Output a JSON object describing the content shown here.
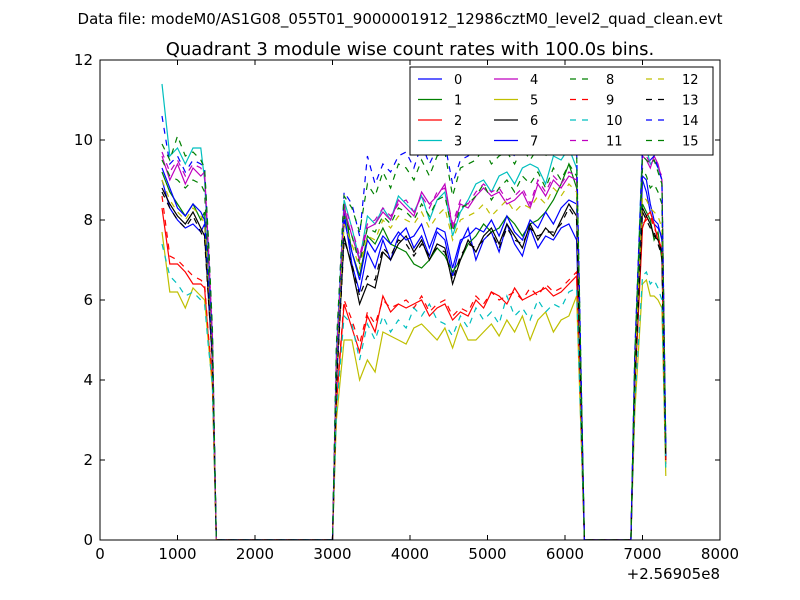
{
  "header": {
    "data_file": "Data file: modeM0/AS1G08_055T01_9000001912_12986cztM0_level2_quad_clean.evt"
  },
  "chart_data": {
    "type": "line",
    "title": "Quadrant 3 module wise count rates with 100.0s bins.",
    "xlabel": "",
    "ylabel": "",
    "x_offset_label": "+2.56905e8",
    "xlim": [
      0,
      8000
    ],
    "ylim": [
      0,
      12
    ],
    "xticks": [
      0,
      1000,
      2000,
      3000,
      4000,
      5000,
      6000,
      7000,
      8000
    ],
    "yticks": [
      0,
      2,
      4,
      6,
      8,
      10,
      12
    ],
    "grid": false,
    "legend_placement": "top-right",
    "legend_columns": 4,
    "x": [
      800,
      900,
      1000,
      1100,
      1200,
      1300,
      1350,
      1400,
      1450,
      1500,
      1600,
      2000,
      2500,
      3000,
      3050,
      3150,
      3250,
      3350,
      3450,
      3550,
      3650,
      3750,
      3850,
      3950,
      4050,
      4150,
      4250,
      4350,
      4450,
      4550,
      4650,
      4750,
      4850,
      4950,
      5050,
      5150,
      5250,
      5350,
      5450,
      5550,
      5650,
      5750,
      5850,
      5950,
      6050,
      6150,
      6250,
      6300,
      6850,
      6900,
      7000,
      7050,
      7100,
      7150,
      7200,
      7250,
      7300
    ],
    "series": [
      {
        "name": "0",
        "color": "#0000ff",
        "dashed": false,
        "values": [
          9.0,
          8.3,
          8.0,
          7.8,
          7.9,
          7.7,
          7.9,
          6.0,
          4.5,
          0,
          0,
          0,
          0,
          0,
          4.0,
          8.2,
          6.9,
          6.2,
          7.2,
          6.8,
          7.5,
          7.0,
          7.6,
          7.8,
          7.3,
          7.6,
          7.1,
          7.7,
          7.5,
          6.6,
          7.4,
          7.8,
          7.0,
          7.5,
          7.7,
          7.2,
          7.9,
          7.4,
          7.1,
          7.8,
          7.3,
          7.6,
          7.5,
          7.8,
          7.9,
          7.5,
          0,
          0,
          0,
          4.0,
          9.0,
          8.7,
          8.2,
          7.9,
          7.8,
          7.6,
          2.0
        ]
      },
      {
        "name": "1",
        "color": "#008000",
        "dashed": false,
        "values": [
          9.2,
          8.7,
          8.4,
          8.1,
          8.4,
          8.0,
          8.2,
          6.3,
          4.7,
          0,
          0,
          0,
          0,
          0,
          4.2,
          8.4,
          7.2,
          6.6,
          7.6,
          7.4,
          7.8,
          7.4,
          7.3,
          7.2,
          6.9,
          6.8,
          7.0,
          7.3,
          7.1,
          6.7,
          7.0,
          7.4,
          7.6,
          7.9,
          7.7,
          7.8,
          8.1,
          7.9,
          7.6,
          7.9,
          8.0,
          8.2,
          8.5,
          8.9,
          9.4,
          8.8,
          0,
          0,
          0,
          4.1,
          8.4,
          8.2,
          8.0,
          7.5,
          7.7,
          7.0,
          2.1
        ]
      },
      {
        "name": "2",
        "color": "#ff0000",
        "dashed": false,
        "values": [
          8.3,
          6.9,
          6.9,
          6.7,
          6.4,
          6.4,
          6.3,
          5.0,
          4.0,
          0,
          0,
          0,
          0,
          0,
          3.4,
          5.9,
          5.3,
          4.7,
          5.6,
          5.2,
          6.1,
          5.7,
          5.9,
          5.8,
          5.9,
          6.0,
          5.6,
          5.8,
          5.9,
          5.5,
          5.7,
          5.6,
          6.0,
          5.8,
          6.2,
          6.1,
          5.9,
          6.3,
          6.0,
          6.1,
          6.2,
          6.3,
          6.1,
          6.2,
          6.4,
          6.6,
          0,
          0,
          0,
          3.8,
          7.8,
          8.1,
          8.2,
          7.9,
          7.5,
          7.3,
          1.9
        ]
      },
      {
        "name": "3",
        "color": "#00bfbf",
        "dashed": false,
        "values": [
          11.4,
          9.6,
          9.8,
          9.4,
          9.8,
          9.8,
          9.0,
          7.0,
          5.0,
          0,
          0,
          0,
          0,
          0,
          4.7,
          8.5,
          7.8,
          7.0,
          8.1,
          7.9,
          8.3,
          8.0,
          8.6,
          8.4,
          8.2,
          8.6,
          8.0,
          8.5,
          8.7,
          7.6,
          8.2,
          8.5,
          8.9,
          9.0,
          8.7,
          9.1,
          9.2,
          8.9,
          9.3,
          9.4,
          9.3,
          8.9,
          9.6,
          9.5,
          9.8,
          9.3,
          0,
          0,
          0,
          4.6,
          9.9,
          9.8,
          9.4,
          9.5,
          9.3,
          9.0,
          2.3
        ]
      },
      {
        "name": "4",
        "color": "#bf00bf",
        "dashed": false,
        "values": [
          9.6,
          9.0,
          9.4,
          8.9,
          9.3,
          9.1,
          9.2,
          7.2,
          5.0,
          0,
          0,
          0,
          0,
          0,
          4.4,
          8.3,
          7.6,
          7.0,
          7.8,
          7.9,
          8.2,
          8.0,
          8.5,
          8.3,
          8.1,
          8.7,
          8.4,
          8.6,
          8.9,
          7.8,
          8.4,
          8.3,
          8.6,
          8.8,
          8.6,
          8.7,
          8.4,
          8.5,
          8.7,
          8.3,
          8.9,
          8.6,
          9.0,
          8.8,
          9.1,
          9.0,
          0,
          0,
          0,
          4.4,
          9.6,
          9.5,
          9.3,
          9.6,
          9.4,
          9.0,
          2.2
        ]
      },
      {
        "name": "5",
        "color": "#bfbf00",
        "dashed": false,
        "values": [
          7.7,
          6.2,
          6.2,
          5.8,
          6.3,
          6.1,
          6.0,
          4.9,
          3.8,
          0,
          0,
          0,
          0,
          0,
          3.0,
          5.0,
          5.0,
          4.0,
          4.5,
          4.2,
          5.2,
          5.1,
          5.0,
          4.9,
          5.3,
          5.4,
          5.2,
          5.0,
          5.3,
          4.8,
          5.4,
          5.0,
          5.0,
          5.2,
          5.4,
          5.1,
          5.5,
          5.2,
          5.6,
          5.0,
          5.5,
          5.7,
          5.2,
          5.5,
          5.6,
          6.1,
          0,
          0,
          0,
          3.2,
          6.4,
          6.5,
          6.1,
          6.1,
          6.0,
          5.8,
          1.6
        ]
      },
      {
        "name": "6",
        "color": "#000000",
        "dashed": false,
        "values": [
          8.8,
          8.4,
          8.1,
          7.9,
          8.2,
          7.8,
          7.6,
          6.1,
          4.6,
          0,
          0,
          0,
          0,
          0,
          3.9,
          7.6,
          6.8,
          5.9,
          6.4,
          6.3,
          7.2,
          7.0,
          7.4,
          7.6,
          7.2,
          7.5,
          7.0,
          7.4,
          7.3,
          6.4,
          7.0,
          7.5,
          7.2,
          7.6,
          7.8,
          7.4,
          7.9,
          7.6,
          7.3,
          7.9,
          7.5,
          7.8,
          7.6,
          8.0,
          8.4,
          8.1,
          0,
          0,
          0,
          3.9,
          8.3,
          8.1,
          7.9,
          7.6,
          7.5,
          7.2,
          2.0
        ]
      },
      {
        "name": "7",
        "color": "#0000ff",
        "dashed": false,
        "values": [
          9.3,
          8.8,
          8.3,
          8.1,
          8.4,
          8.2,
          8.0,
          6.4,
          4.8,
          0,
          0,
          0,
          0,
          0,
          4.1,
          8.0,
          7.2,
          6.5,
          7.5,
          7.2,
          7.6,
          7.4,
          7.7,
          7.5,
          7.6,
          7.9,
          7.3,
          7.8,
          7.7,
          6.8,
          7.5,
          7.6,
          7.8,
          7.7,
          8.0,
          7.6,
          8.1,
          7.7,
          7.5,
          8.0,
          7.8,
          8.2,
          7.9,
          8.3,
          8.5,
          8.4,
          0,
          0,
          0,
          4.2,
          9.1,
          9.0,
          8.4,
          8.0,
          7.9,
          7.5,
          2.1
        ]
      },
      {
        "name": "8",
        "color": "#008000",
        "dashed": true,
        "values": [
          9.5,
          9.1,
          9.0,
          8.8,
          9.0,
          8.9,
          8.7,
          6.8,
          5.0,
          0,
          0,
          0,
          0,
          0,
          4.4,
          8.1,
          7.6,
          6.9,
          7.8,
          7.7,
          8.1,
          7.9,
          8.3,
          8.2,
          8.0,
          8.4,
          8.1,
          8.5,
          8.6,
          7.7,
          8.3,
          8.4,
          8.6,
          8.9,
          8.5,
          8.8,
          9.0,
          8.7,
          9.1,
          8.9,
          9.2,
          8.8,
          9.3,
          9.0,
          9.4,
          9.1,
          0,
          0,
          0,
          4.3,
          9.3,
          9.1,
          8.8,
          8.9,
          8.7,
          8.4,
          2.2
        ]
      },
      {
        "name": "9",
        "color": "#ff0000",
        "dashed": true,
        "values": [
          8.6,
          7.1,
          7.0,
          6.8,
          6.6,
          6.5,
          6.4,
          5.1,
          4.1,
          0,
          0,
          0,
          0,
          0,
          3.5,
          6.0,
          5.5,
          4.9,
          5.7,
          5.4,
          6.0,
          5.8,
          5.9,
          6.0,
          5.8,
          6.1,
          5.7,
          5.9,
          6.0,
          5.6,
          5.8,
          5.7,
          6.1,
          5.9,
          6.2,
          6.0,
          6.1,
          6.2,
          6.0,
          6.3,
          6.1,
          6.4,
          6.2,
          6.3,
          6.5,
          6.7,
          0,
          0,
          0,
          3.9,
          7.9,
          8.0,
          8.1,
          7.8,
          7.6,
          7.2,
          2.0
        ]
      },
      {
        "name": "10",
        "color": "#00bfbf",
        "dashed": true,
        "values": [
          7.4,
          6.6,
          6.4,
          6.1,
          6.2,
          6.0,
          5.9,
          4.8,
          3.9,
          0,
          0,
          0,
          0,
          0,
          3.2,
          5.6,
          5.4,
          4.5,
          5.4,
          5.0,
          5.6,
          5.2,
          5.5,
          5.3,
          5.8,
          5.6,
          5.9,
          5.5,
          5.4,
          5.1,
          5.6,
          5.3,
          5.8,
          5.5,
          5.7,
          5.4,
          6.1,
          5.6,
          5.8,
          5.5,
          6.0,
          5.7,
          5.9,
          5.8,
          6.2,
          6.3,
          0,
          0,
          0,
          3.4,
          6.6,
          6.7,
          6.4,
          6.5,
          6.3,
          6.0,
          1.8
        ]
      },
      {
        "name": "11",
        "color": "#bf00bf",
        "dashed": true,
        "values": [
          9.7,
          9.2,
          9.5,
          9.1,
          9.4,
          9.3,
          9.1,
          7.3,
          5.1,
          0,
          0,
          0,
          0,
          0,
          4.5,
          8.4,
          7.8,
          7.1,
          7.9,
          8.0,
          8.3,
          8.1,
          8.4,
          8.5,
          8.2,
          8.6,
          8.3,
          8.7,
          8.8,
          7.9,
          8.5,
          8.4,
          8.7,
          8.9,
          8.7,
          8.8,
          8.5,
          8.6,
          8.8,
          8.4,
          9.0,
          8.7,
          9.1,
          8.9,
          9.2,
          9.1,
          0,
          0,
          0,
          4.5,
          9.7,
          9.6,
          9.4,
          9.5,
          9.3,
          9.1,
          2.3
        ]
      },
      {
        "name": "12",
        "color": "#bfbf00",
        "dashed": true,
        "values": [
          9.0,
          8.5,
          8.2,
          8.0,
          8.3,
          8.1,
          7.9,
          6.2,
          4.7,
          0,
          0,
          0,
          0,
          0,
          4.0,
          7.9,
          7.4,
          6.8,
          7.6,
          7.5,
          8.0,
          7.8,
          8.1,
          8.0,
          7.9,
          8.2,
          7.8,
          8.1,
          8.3,
          7.5,
          8.0,
          8.1,
          8.2,
          8.4,
          8.1,
          8.3,
          8.5,
          8.2,
          8.4,
          8.3,
          8.6,
          8.4,
          8.8,
          8.6,
          8.9,
          8.7,
          0,
          0,
          0,
          4.1,
          8.6,
          8.5,
          8.3,
          8.2,
          8.1,
          7.8,
          2.1
        ]
      },
      {
        "name": "13",
        "color": "#000000",
        "dashed": true,
        "values": [
          8.7,
          8.3,
          8.0,
          7.8,
          8.1,
          7.7,
          7.5,
          6.0,
          4.5,
          0,
          0,
          0,
          0,
          0,
          3.8,
          7.5,
          6.9,
          6.1,
          6.6,
          6.5,
          7.3,
          7.1,
          7.5,
          7.4,
          7.1,
          7.4,
          7.1,
          7.3,
          7.2,
          6.5,
          7.1,
          7.4,
          7.3,
          7.5,
          7.7,
          7.3,
          7.8,
          7.5,
          7.4,
          7.8,
          7.6,
          7.7,
          7.7,
          7.9,
          8.3,
          8.0,
          0,
          0,
          0,
          3.9,
          8.2,
          8.0,
          7.8,
          7.7,
          7.4,
          7.1,
          2.0
        ]
      },
      {
        "name": "14",
        "color": "#0000ff",
        "dashed": true,
        "values": [
          10.6,
          9.4,
          9.6,
          9.2,
          9.5,
          9.4,
          9.3,
          7.4,
          5.2,
          0,
          0,
          0,
          0,
          0,
          4.8,
          8.7,
          8.4,
          7.6,
          9.6,
          8.9,
          9.4,
          9.2,
          9.6,
          9.7,
          9.3,
          9.9,
          9.4,
          9.8,
          9.9,
          8.9,
          9.5,
          9.6,
          9.8,
          9.9,
          9.7,
          9.9,
          9.8,
          9.6,
          9.9,
          9.7,
          9.9,
          9.8,
          9.9,
          9.7,
          9.9,
          9.8,
          0,
          0,
          0,
          4.7,
          9.8,
          9.7,
          9.5,
          9.6,
          9.3,
          9.0,
          2.4
        ]
      },
      {
        "name": "15",
        "color": "#008000",
        "dashed": true,
        "values": [
          9.9,
          9.5,
          10.1,
          9.6,
          9.7,
          9.5,
          9.3,
          7.5,
          5.3,
          0,
          0,
          0,
          0,
          0,
          4.9,
          8.6,
          8.3,
          7.7,
          8.9,
          8.6,
          9.2,
          8.8,
          9.4,
          9.3,
          9.0,
          9.5,
          9.1,
          9.6,
          9.7,
          8.6,
          9.3,
          9.4,
          9.5,
          9.8,
          9.4,
          9.6,
          9.7,
          9.4,
          9.8,
          9.5,
          9.8,
          9.6,
          9.9,
          9.7,
          9.8,
          9.7,
          0,
          0,
          0,
          4.6,
          9.6,
          9.5,
          9.4,
          9.5,
          9.2,
          8.9,
          2.3
        ]
      }
    ]
  }
}
